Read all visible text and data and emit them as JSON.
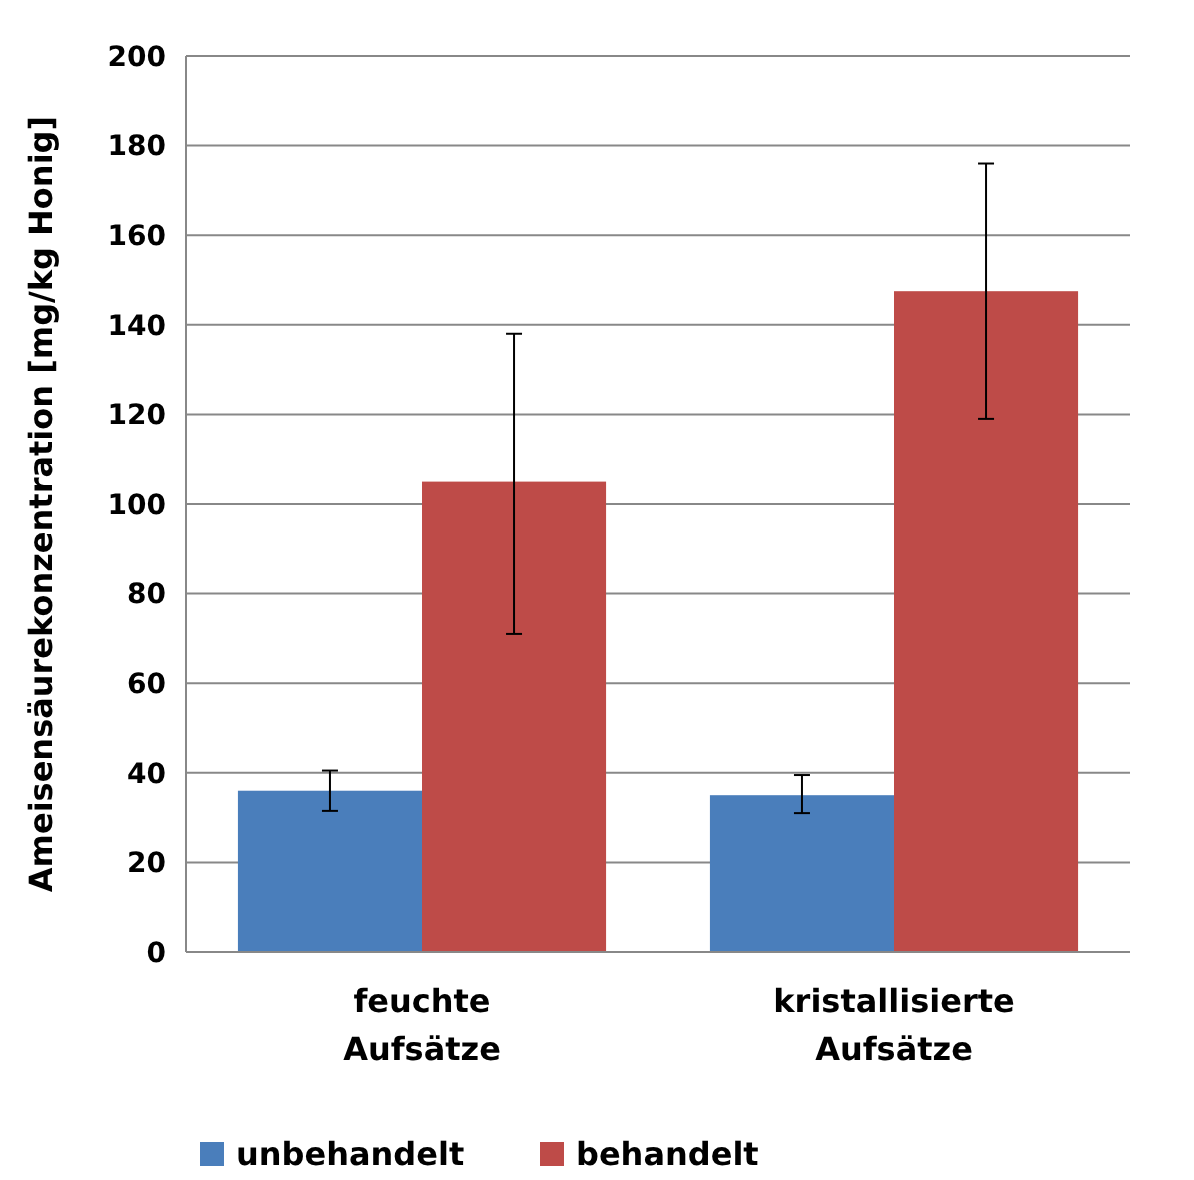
{
  "chart_data": {
    "type": "bar",
    "ylabel": "Ameisensäurekonzentration [mg/kg Honig]",
    "categories": [
      "feuchte\nAufsätze",
      "kristallisierte\nAufsätze"
    ],
    "series": [
      {
        "name": "unbehandelt",
        "color": "#4a7ebb",
        "values": [
          36,
          35
        ],
        "errors": [
          [
            31.5,
            40.5
          ],
          [
            31,
            39.5
          ]
        ]
      },
      {
        "name": "behandelt",
        "color": "#be4b48",
        "values": [
          105,
          147.5
        ],
        "errors": [
          [
            71,
            138
          ],
          [
            119,
            176
          ]
        ]
      }
    ],
    "ylim": [
      0,
      200
    ],
    "yticks": [
      0,
      20,
      40,
      60,
      80,
      100,
      120,
      140,
      160,
      180,
      200
    ],
    "grid": "y",
    "legend": "bottom"
  }
}
